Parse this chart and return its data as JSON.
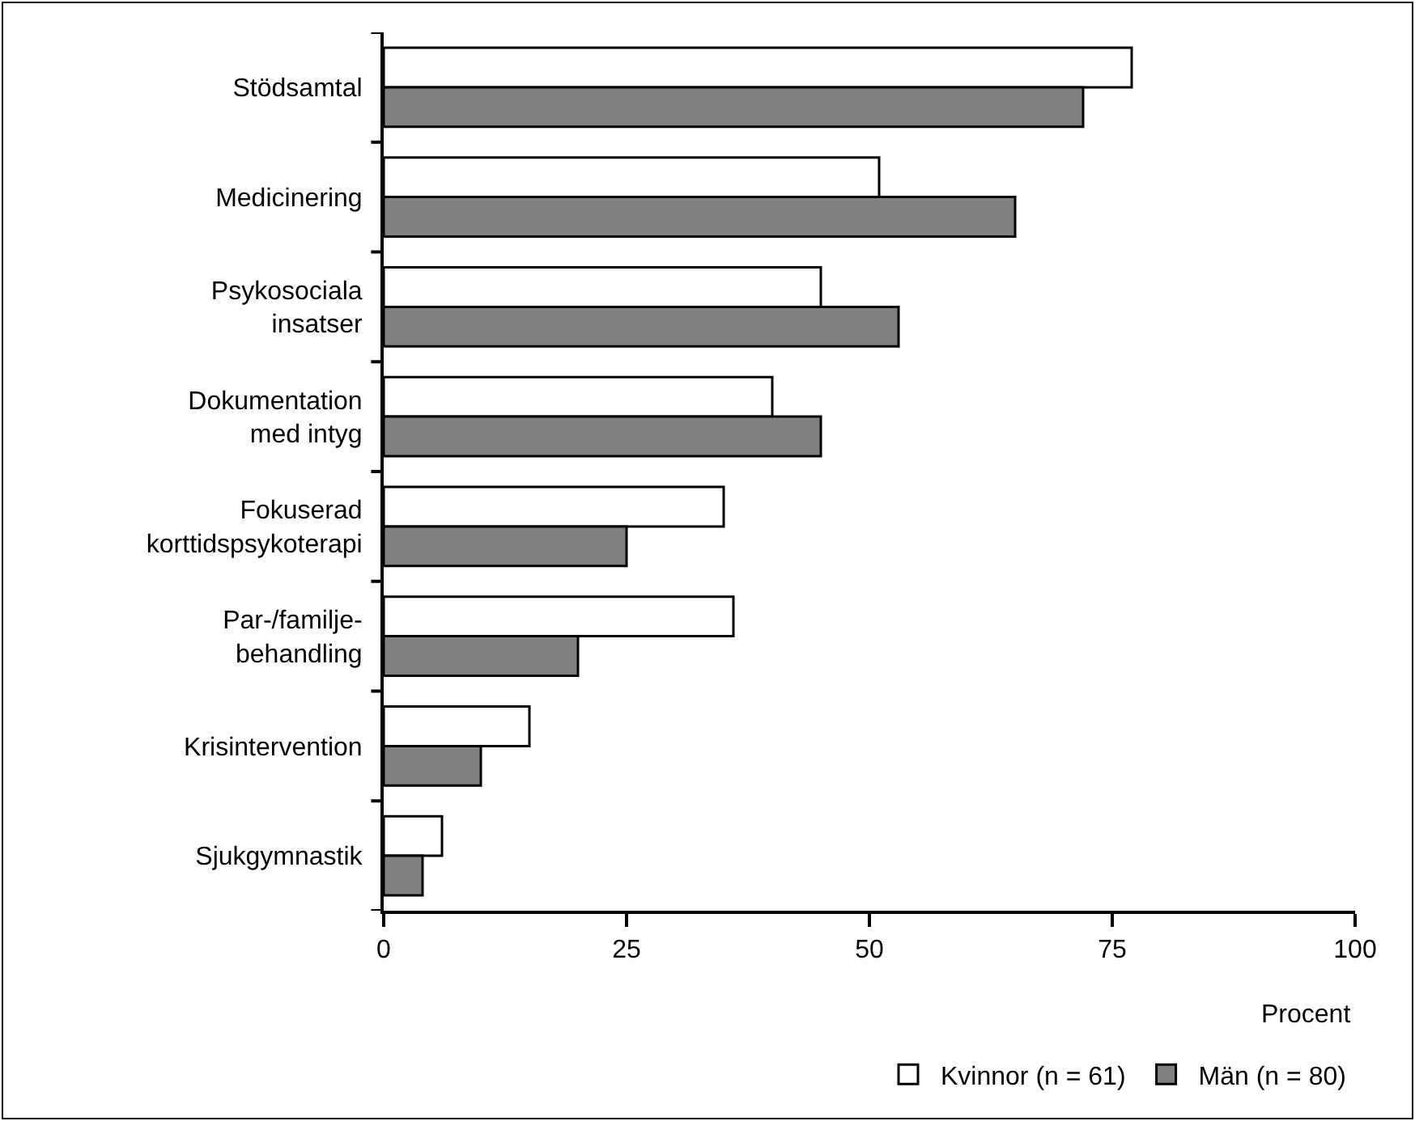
{
  "chart_data": {
    "type": "bar",
    "orientation": "horizontal",
    "xlabel": "Procent",
    "categories": [
      "Stödsamtal",
      "Medicinering",
      "Psykosociala\ninsatser",
      "Dokumentation\nmed intyg",
      "Fokuserad\nkorttidspsykoterapi",
      "Par-/familje-\nbehandling",
      "Krisintervention",
      "Sjukgymnastik"
    ],
    "series": [
      {
        "name": "Kvinnor (n = 61)",
        "color": "#ffffff",
        "values": [
          77,
          51,
          45,
          40,
          35,
          36,
          15,
          6
        ]
      },
      {
        "name": "Män (n = 80)",
        "color": "#808080",
        "values": [
          72,
          65,
          53,
          45,
          25,
          20,
          10,
          4
        ]
      }
    ],
    "xlim": [
      0,
      100
    ],
    "xticks": [
      0,
      25,
      50,
      75,
      100
    ],
    "grid": false,
    "legend": "bottom right"
  }
}
